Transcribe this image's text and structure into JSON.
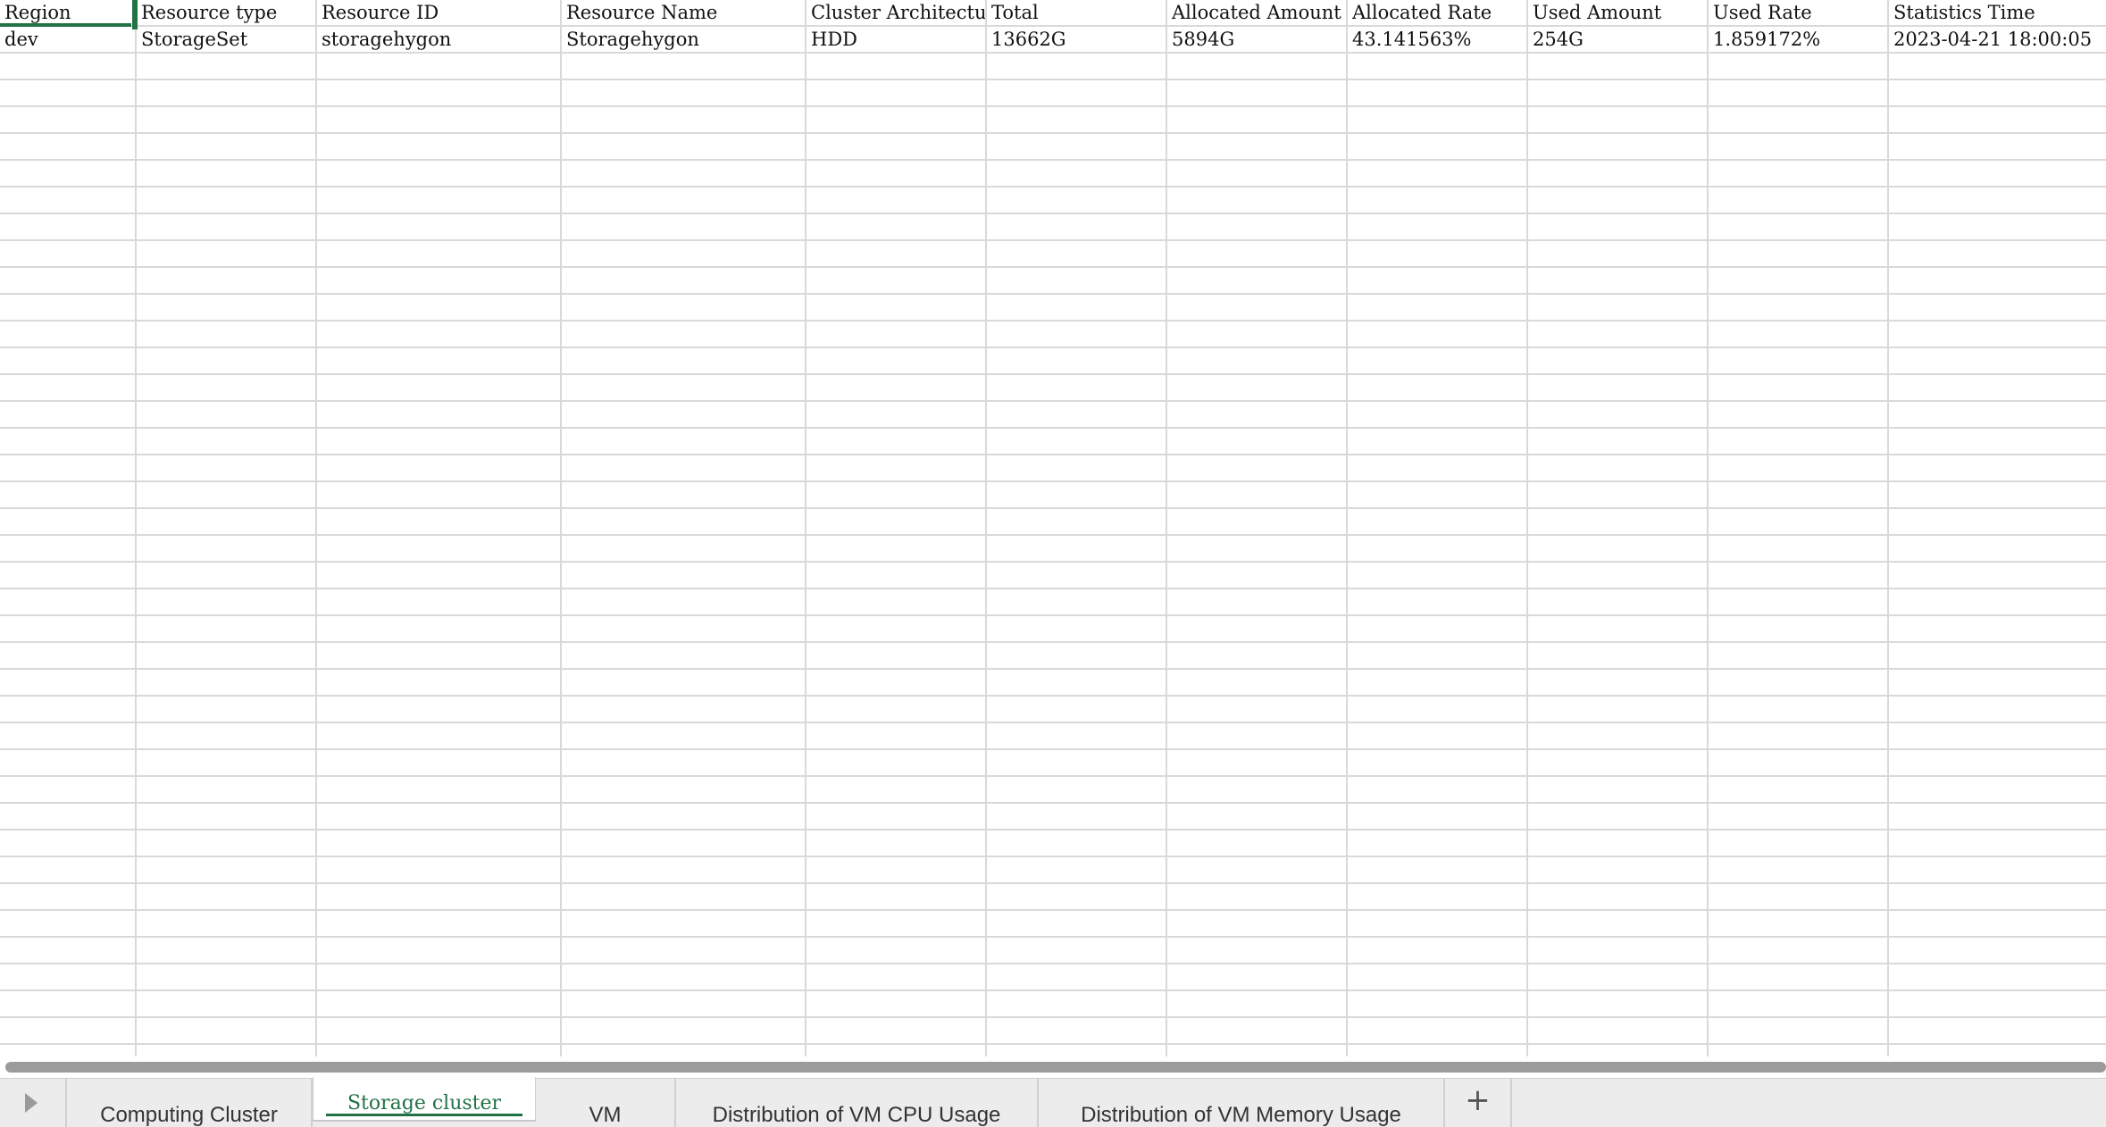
{
  "sheet": {
    "columns": [
      "Region",
      "Resource type",
      "Resource ID",
      "Resource Name",
      "Cluster Architecture",
      "Total",
      "Allocated Amount",
      "Allocated Rate",
      "Used Amount",
      "Used Rate",
      "Statistics Time"
    ],
    "rows": [
      [
        "dev",
        "StorageSet",
        "storagehygon",
        "Storagehygon",
        "HDD",
        "13662G",
        "5894G",
        "43.141563%",
        "254G",
        "1.859172%",
        "2023-04-21 18:00:05"
      ]
    ]
  },
  "tabs": {
    "items": [
      {
        "label": "Computing Cluster",
        "active": false
      },
      {
        "label": "Storage cluster",
        "active": true
      },
      {
        "label": "VM",
        "active": false
      },
      {
        "label": "Distribution of VM CPU Usage",
        "active": false
      },
      {
        "label": "Distribution of VM Memory Usage",
        "active": false
      }
    ],
    "add_label": "+",
    "nav_icon": "play-arrow-icon"
  },
  "colors": {
    "accent": "#217346",
    "gridline": "#d9d9d9",
    "tabbar": "#ececec",
    "scrollbar": "#9b9b9b"
  }
}
